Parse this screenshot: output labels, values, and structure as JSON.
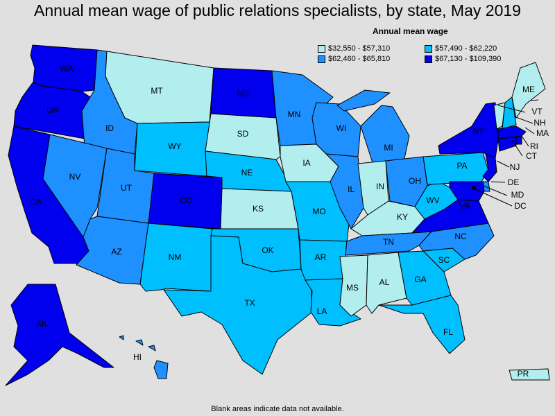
{
  "title": "Annual mean wage of public relations specialists, by state, May 2019",
  "legend": {
    "title": "Annual mean wage",
    "items": [
      {
        "range": "$32,550 - $57,310",
        "color": "#b3eeee"
      },
      {
        "range": "$57,490 - $62,220",
        "color": "#00bfff"
      },
      {
        "range": "$62,460 - $65,810",
        "color": "#1e90ff"
      },
      {
        "range": "$67,130 - $109,390",
        "color": "#0000ee"
      }
    ]
  },
  "footnote": "Blank areas indicate data not available.",
  "states": [
    {
      "abbr": "WA",
      "bin": 3
    },
    {
      "abbr": "OR",
      "bin": 3
    },
    {
      "abbr": "CA",
      "bin": 3
    },
    {
      "abbr": "ID",
      "bin": 2
    },
    {
      "abbr": "NV",
      "bin": 2
    },
    {
      "abbr": "MT",
      "bin": 0
    },
    {
      "abbr": "WY",
      "bin": 1
    },
    {
      "abbr": "UT",
      "bin": 2
    },
    {
      "abbr": "AZ",
      "bin": 2
    },
    {
      "abbr": "CO",
      "bin": 3
    },
    {
      "abbr": "NM",
      "bin": 1
    },
    {
      "abbr": "ND",
      "bin": 3
    },
    {
      "abbr": "SD",
      "bin": 0
    },
    {
      "abbr": "NE",
      "bin": 1
    },
    {
      "abbr": "KS",
      "bin": 0
    },
    {
      "abbr": "OK",
      "bin": 1
    },
    {
      "abbr": "TX",
      "bin": 1
    },
    {
      "abbr": "MN",
      "bin": 2
    },
    {
      "abbr": "IA",
      "bin": 0
    },
    {
      "abbr": "MO",
      "bin": 1
    },
    {
      "abbr": "AR",
      "bin": 1
    },
    {
      "abbr": "LA",
      "bin": 1
    },
    {
      "abbr": "WI",
      "bin": 2
    },
    {
      "abbr": "IL",
      "bin": 2
    },
    {
      "abbr": "MI",
      "bin": 2
    },
    {
      "abbr": "IN",
      "bin": 0
    },
    {
      "abbr": "OH",
      "bin": 2
    },
    {
      "abbr": "KY",
      "bin": 0
    },
    {
      "abbr": "TN",
      "bin": 2
    },
    {
      "abbr": "MS",
      "bin": 0
    },
    {
      "abbr": "AL",
      "bin": 0
    },
    {
      "abbr": "GA",
      "bin": 1
    },
    {
      "abbr": "FL",
      "bin": 1
    },
    {
      "abbr": "SC",
      "bin": 1
    },
    {
      "abbr": "NC",
      "bin": 2
    },
    {
      "abbr": "VA",
      "bin": 3
    },
    {
      "abbr": "WV",
      "bin": 1
    },
    {
      "abbr": "PA",
      "bin": 1
    },
    {
      "abbr": "NY",
      "bin": 3
    },
    {
      "abbr": "VT",
      "bin": 0
    },
    {
      "abbr": "NH",
      "bin": 1
    },
    {
      "abbr": "ME",
      "bin": 0
    },
    {
      "abbr": "MA",
      "bin": 3
    },
    {
      "abbr": "RI",
      "bin": 3
    },
    {
      "abbr": "CT",
      "bin": 3
    },
    {
      "abbr": "NJ",
      "bin": 3
    },
    {
      "abbr": "DE",
      "bin": 2
    },
    {
      "abbr": "MD",
      "bin": 3
    },
    {
      "abbr": "DC",
      "bin": 3
    },
    {
      "abbr": "AK",
      "bin": 3
    },
    {
      "abbr": "HI",
      "bin": 2
    },
    {
      "abbr": "PR",
      "bin": 0
    }
  ]
}
